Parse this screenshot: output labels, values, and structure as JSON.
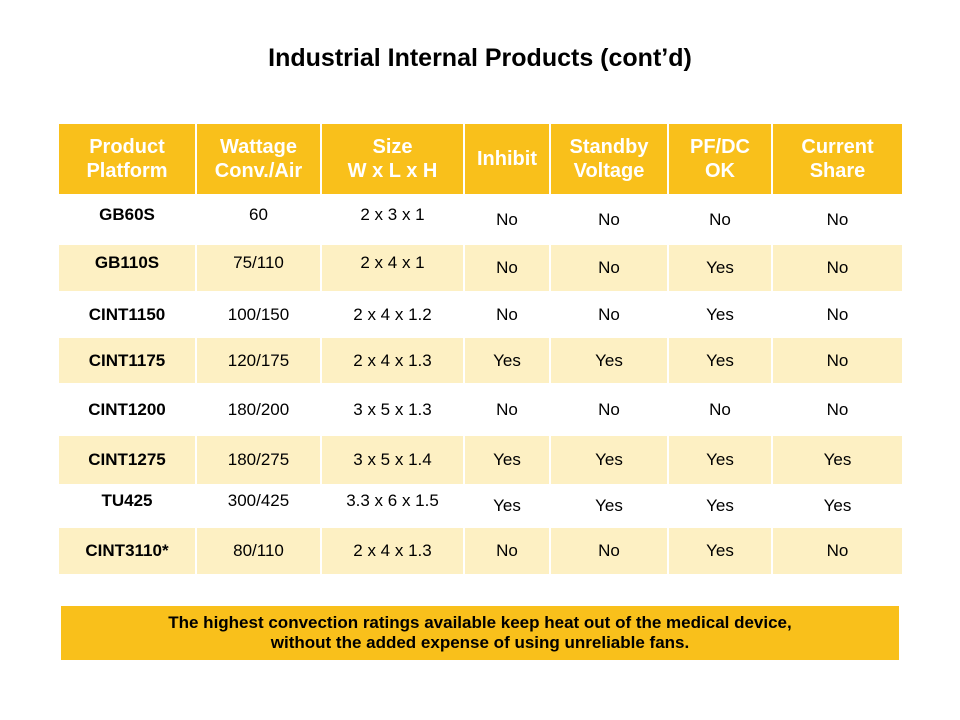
{
  "title": "Industrial Internal Products (cont’d)",
  "columns": [
    [
      "Product",
      "Platform"
    ],
    [
      "Wattage",
      "Conv./Air"
    ],
    [
      "Size",
      "W x L x H"
    ],
    [
      "Inhibit"
    ],
    [
      "Standby",
      "Voltage"
    ],
    [
      "PF/DC",
      "OK"
    ],
    [
      "Current",
      "Share"
    ]
  ],
  "rows": [
    [
      "GB60S",
      "60",
      "2 x 3 x 1",
      "No",
      "No",
      "No",
      "No"
    ],
    [
      "GB110S",
      "75/110",
      "2 x 4 x 1",
      "No",
      "No",
      "Yes",
      "No"
    ],
    [
      "CINT1150",
      "100/150",
      "2 x 4 x 1.2",
      "No",
      "No",
      "Yes",
      "No"
    ],
    [
      "CINT1175",
      "120/175",
      "2 x 4 x 1.3",
      "Yes",
      "Yes",
      "Yes",
      "No"
    ],
    [
      "CINT1200",
      "180/200",
      "3 x 5 x 1.3",
      "No",
      "No",
      "No",
      "No"
    ],
    [
      "CINT1275",
      "180/275",
      "3 x 5 x 1.4",
      "Yes",
      "Yes",
      "Yes",
      "Yes"
    ],
    [
      "TU425",
      "300/425",
      "3.3 x 6 x 1.5",
      "Yes",
      "Yes",
      "Yes",
      "Yes"
    ],
    [
      "CINT3110*",
      "80/110",
      "2 x 4 x 1.3",
      "No",
      "No",
      "Yes",
      "No"
    ]
  ],
  "footer": {
    "line1": "The highest convection ratings available keep heat out of the medical device,",
    "line2": "without the added expense of using unreliable fans."
  },
  "colors": {
    "header_background": "#f9c01b",
    "alt_row_background": "#fdf0c3",
    "header_text": "#ffffff"
  }
}
